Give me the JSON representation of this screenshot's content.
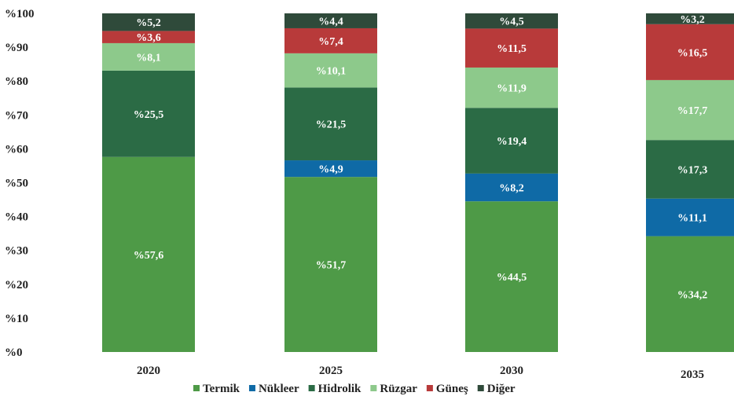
{
  "chart_data": {
    "type": "bar",
    "stacked": true,
    "categories": [
      "2020",
      "2025",
      "2030",
      "2035"
    ],
    "series": [
      {
        "name": "Termik",
        "color": "#4e9a47",
        "values": [
          57.6,
          51.7,
          44.5,
          34.2
        ],
        "labels": [
          "%57,6",
          "%51,7",
          "%44,5",
          "%34,2"
        ]
      },
      {
        "name": "Nükleer",
        "color": "#0f6aa6",
        "values": [
          0,
          4.9,
          8.2,
          11.1
        ],
        "labels": [
          "",
          "%4,9",
          "%8,2",
          "%11,1"
        ]
      },
      {
        "name": "Hidrolik",
        "color": "#2b6b45",
        "values": [
          25.5,
          21.5,
          19.4,
          17.3
        ],
        "labels": [
          "%25,5",
          "%21,5",
          "%19,4",
          "%17,3"
        ]
      },
      {
        "name": "Rüzgar",
        "color": "#8dc98b",
        "values": [
          8.1,
          10.1,
          11.9,
          17.7
        ],
        "labels": [
          "%8,1",
          "%10,1",
          "%11,9",
          "%17,7"
        ]
      },
      {
        "name": "Güneş",
        "color": "#b83a3a",
        "values": [
          3.6,
          7.4,
          11.5,
          16.5
        ],
        "labels": [
          "%3,6",
          "%7,4",
          "%11,5",
          "%16,5"
        ]
      },
      {
        "name": "Diğer",
        "color": "#2f4a3a",
        "values": [
          5.2,
          4.4,
          4.5,
          3.2
        ],
        "labels": [
          "%5,2",
          "%4,4",
          "%4,5",
          "%3,2"
        ]
      }
    ],
    "yticks": [
      "%0",
      "%10",
      "%20",
      "%30",
      "%40",
      "%50",
      "%60",
      "%70",
      "%80",
      "%90",
      "%100"
    ],
    "ylim": [
      0,
      100
    ],
    "grid": false,
    "legend_position": "bottom"
  }
}
